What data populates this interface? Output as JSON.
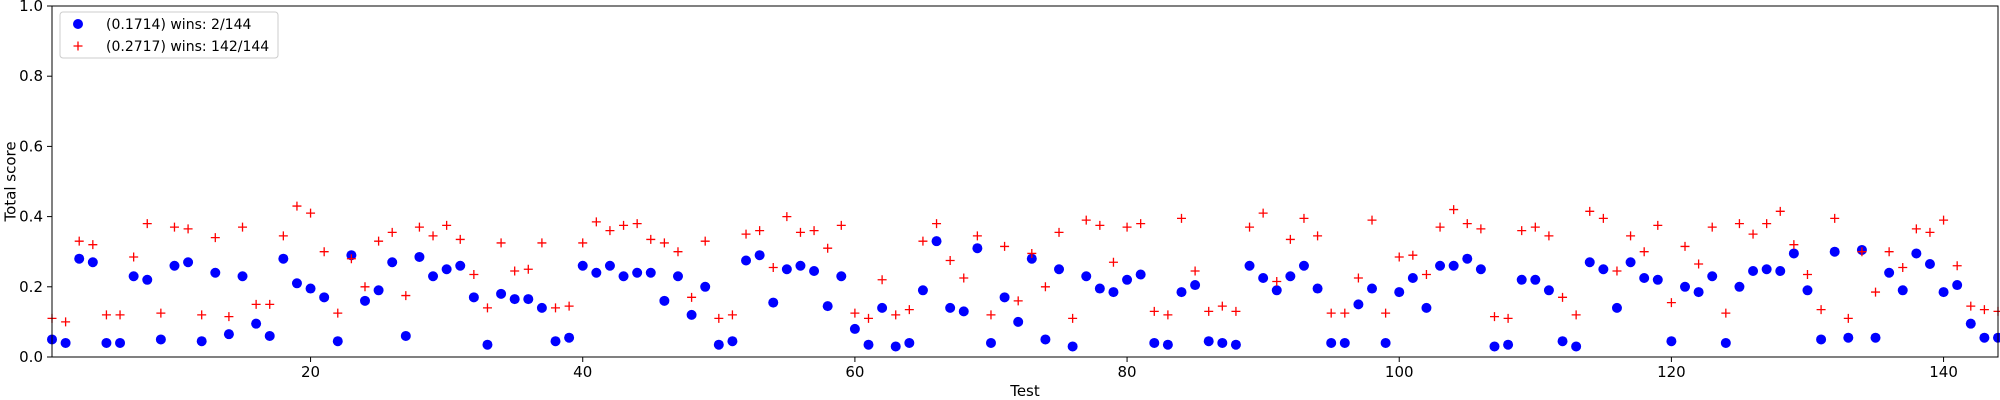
{
  "chart_data": {
    "type": "scatter",
    "xlabel": "Test",
    "ylabel": "Total score",
    "xlim": [
      1,
      144
    ],
    "ylim": [
      0,
      1.0
    ],
    "x_ticks": [
      20,
      40,
      60,
      80,
      100,
      120,
      140
    ],
    "y_ticks": [
      0.0,
      0.2,
      0.4,
      0.6,
      0.8,
      1.0
    ],
    "legend_position": "top-left",
    "grid": false,
    "series": [
      {
        "name": "(0.1714) wins: 2/144",
        "marker": "circle",
        "color": "#0000ff",
        "x": [
          1,
          2,
          3,
          4,
          5,
          6,
          7,
          8,
          9,
          10,
          11,
          12,
          13,
          14,
          15,
          16,
          17,
          18,
          19,
          20,
          21,
          22,
          23,
          24,
          25,
          26,
          27,
          28,
          29,
          30,
          31,
          32,
          33,
          34,
          35,
          36,
          37,
          38,
          39,
          40,
          41,
          42,
          43,
          44,
          45,
          46,
          47,
          48,
          49,
          50,
          51,
          52,
          53,
          54,
          55,
          56,
          57,
          58,
          59,
          60,
          61,
          62,
          63,
          64,
          65,
          66,
          67,
          68,
          69,
          70,
          71,
          72,
          73,
          74,
          75,
          76,
          77,
          78,
          79,
          80,
          81,
          82,
          83,
          84,
          85,
          86,
          87,
          88,
          89,
          90,
          91,
          92,
          93,
          94,
          95,
          96,
          97,
          98,
          99,
          100,
          101,
          102,
          103,
          104,
          105,
          106,
          107,
          108,
          109,
          110,
          111,
          112,
          113,
          114,
          115,
          116,
          117,
          118,
          119,
          120,
          121,
          122,
          123,
          124,
          125,
          126,
          127,
          128,
          129,
          130,
          131,
          132,
          133,
          134,
          135,
          136,
          137,
          138,
          139,
          140,
          141,
          142,
          143,
          144
        ],
        "y": [
          0.05,
          0.04,
          0.28,
          0.27,
          0.04,
          0.04,
          0.23,
          0.22,
          0.05,
          0.26,
          0.27,
          0.045,
          0.24,
          0.065,
          0.23,
          0.095,
          0.06,
          0.28,
          0.21,
          0.195,
          0.17,
          0.045,
          0.29,
          0.16,
          0.19,
          0.27,
          0.06,
          0.285,
          0.23,
          0.25,
          0.26,
          0.17,
          0.035,
          0.18,
          0.165,
          0.165,
          0.14,
          0.045,
          0.055,
          0.26,
          0.24,
          0.26,
          0.23,
          0.24,
          0.24,
          0.16,
          0.23,
          0.12,
          0.2,
          0.035,
          0.045,
          0.275,
          0.29,
          0.155,
          0.25,
          0.26,
          0.245,
          0.145,
          0.23,
          0.08,
          0.035,
          0.14,
          0.03,
          0.04,
          0.19,
          0.33,
          0.14,
          0.13,
          0.31,
          0.04,
          0.17,
          0.1,
          0.28,
          0.05,
          0.25,
          0.03,
          0.23,
          0.195,
          0.185,
          0.22,
          0.235,
          0.04,
          0.035,
          0.185,
          0.205,
          0.045,
          0.04,
          0.035,
          0.26,
          0.225,
          0.19,
          0.23,
          0.26,
          0.195,
          0.04,
          0.04,
          0.15,
          0.195,
          0.04,
          0.185,
          0.225,
          0.14,
          0.26,
          0.26,
          0.28,
          0.25,
          0.03,
          0.035,
          0.22,
          0.22,
          0.19,
          0.045,
          0.03,
          0.27,
          0.25,
          0.14,
          0.27,
          0.225,
          0.22,
          0.045,
          0.2,
          0.185,
          0.23,
          0.04,
          0.2,
          0.245,
          0.25,
          0.245,
          0.295,
          0.19,
          0.05,
          0.3,
          0.055,
          0.305,
          0.055,
          0.24,
          0.19,
          0.295,
          0.265,
          0.185,
          0.205,
          0.095,
          0.055,
          0.055
        ]
      },
      {
        "name": "(0.2717) wins: 142/144",
        "marker": "plus",
        "color": "#ff0000",
        "x": [
          1,
          2,
          3,
          4,
          5,
          6,
          7,
          8,
          9,
          10,
          11,
          12,
          13,
          14,
          15,
          16,
          17,
          18,
          19,
          20,
          21,
          22,
          23,
          24,
          25,
          26,
          27,
          28,
          29,
          30,
          31,
          32,
          33,
          34,
          35,
          36,
          37,
          38,
          39,
          40,
          41,
          42,
          43,
          44,
          45,
          46,
          47,
          48,
          49,
          50,
          51,
          52,
          53,
          54,
          55,
          56,
          57,
          58,
          59,
          60,
          61,
          62,
          63,
          64,
          65,
          66,
          67,
          68,
          69,
          70,
          71,
          72,
          73,
          74,
          75,
          76,
          77,
          78,
          79,
          80,
          81,
          82,
          83,
          84,
          85,
          86,
          87,
          88,
          89,
          90,
          91,
          92,
          93,
          94,
          95,
          96,
          97,
          98,
          99,
          100,
          101,
          102,
          103,
          104,
          105,
          106,
          107,
          108,
          109,
          110,
          111,
          112,
          113,
          114,
          115,
          116,
          117,
          118,
          119,
          120,
          121,
          122,
          123,
          124,
          125,
          126,
          127,
          128,
          129,
          130,
          131,
          132,
          133,
          134,
          135,
          136,
          137,
          138,
          139,
          140,
          141,
          142,
          143,
          144
        ],
        "y": [
          0.11,
          0.1,
          0.33,
          0.32,
          0.12,
          0.12,
          0.285,
          0.38,
          0.125,
          0.37,
          0.365,
          0.12,
          0.34,
          0.115,
          0.37,
          0.15,
          0.15,
          0.345,
          0.43,
          0.41,
          0.3,
          0.125,
          0.28,
          0.2,
          0.33,
          0.355,
          0.175,
          0.37,
          0.345,
          0.375,
          0.335,
          0.235,
          0.14,
          0.325,
          0.245,
          0.25,
          0.325,
          0.14,
          0.145,
          0.325,
          0.385,
          0.36,
          0.375,
          0.38,
          0.335,
          0.325,
          0.3,
          0.17,
          0.33,
          0.11,
          0.12,
          0.35,
          0.36,
          0.255,
          0.4,
          0.355,
          0.36,
          0.31,
          0.375,
          0.125,
          0.11,
          0.22,
          0.12,
          0.135,
          0.33,
          0.38,
          0.275,
          0.225,
          0.345,
          0.12,
          0.315,
          0.16,
          0.295,
          0.2,
          0.355,
          0.11,
          0.39,
          0.375,
          0.27,
          0.37,
          0.38,
          0.13,
          0.12,
          0.395,
          0.245,
          0.13,
          0.145,
          0.13,
          0.37,
          0.41,
          0.215,
          0.335,
          0.395,
          0.345,
          0.125,
          0.125,
          0.225,
          0.39,
          0.125,
          0.285,
          0.29,
          0.235,
          0.37,
          0.42,
          0.38,
          0.365,
          0.115,
          0.11,
          0.36,
          0.37,
          0.345,
          0.17,
          0.12,
          0.415,
          0.395,
          0.245,
          0.345,
          0.3,
          0.375,
          0.155,
          0.315,
          0.265,
          0.37,
          0.125,
          0.38,
          0.35,
          0.38,
          0.415,
          0.32,
          0.235,
          0.135,
          0.395,
          0.11,
          0.3,
          0.185,
          0.3,
          0.255,
          0.365,
          0.355,
          0.39,
          0.26,
          0.145,
          0.135,
          0.13
        ]
      }
    ]
  }
}
